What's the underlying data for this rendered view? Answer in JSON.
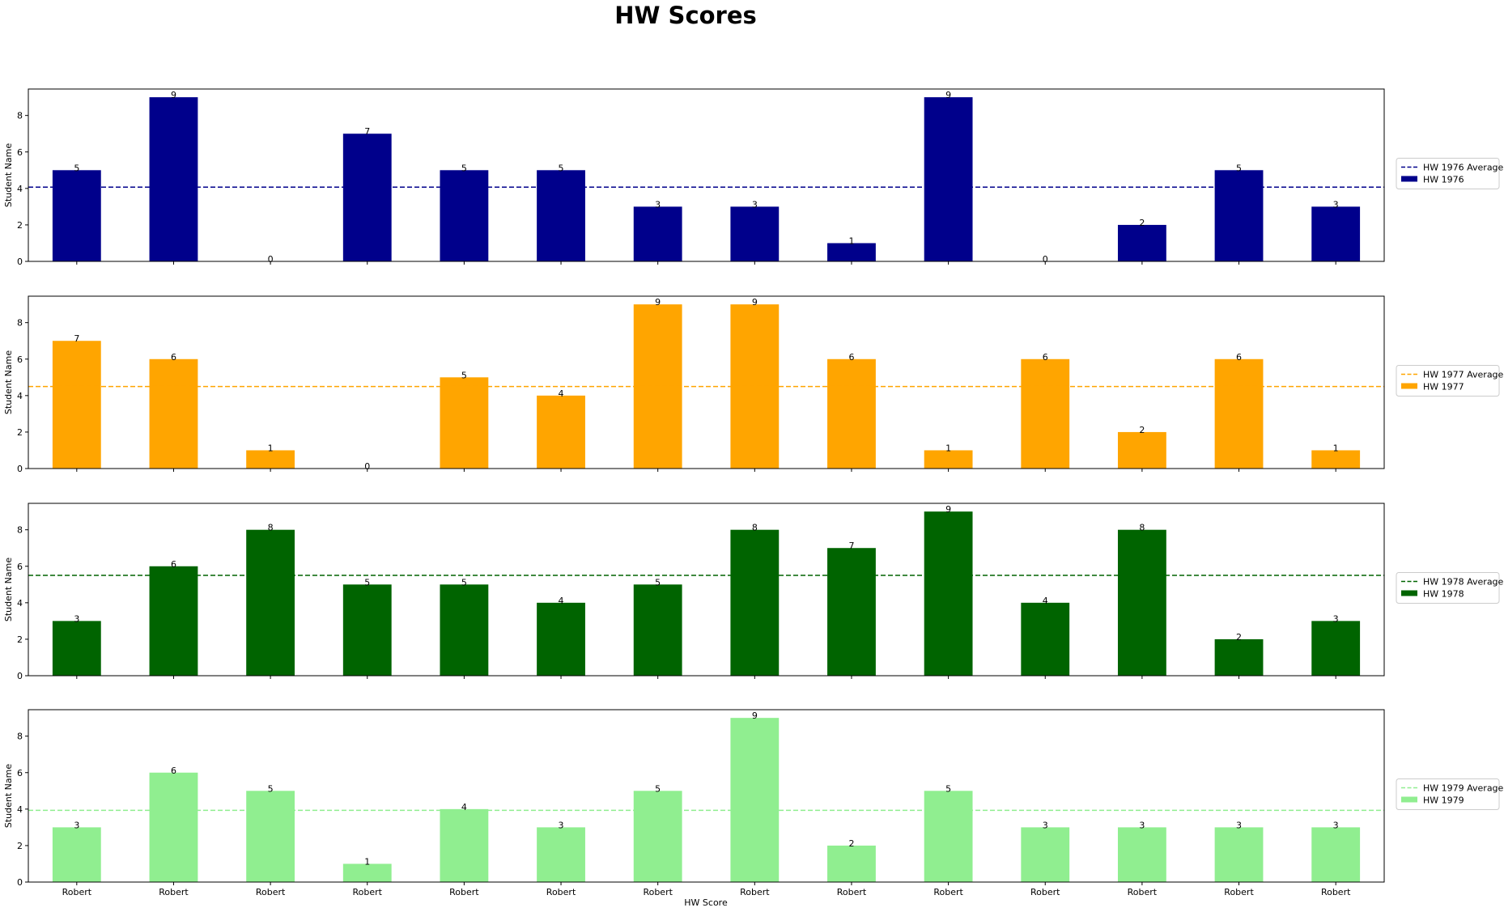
{
  "figure": {
    "title": "HW Scores",
    "xlabel": "HW Score",
    "ylabel": "Student Name"
  },
  "chart_data": [
    {
      "type": "bar",
      "categories": [
        "Robert",
        "Robert",
        "Robert",
        "Robert",
        "Robert",
        "Robert",
        "Robert",
        "Robert",
        "Robert",
        "Robert",
        "Robert",
        "Robert",
        "Robert",
        "Robert"
      ],
      "series": [
        {
          "name": "HW 1976",
          "values": [
            5,
            9,
            0,
            7,
            5,
            5,
            3,
            3,
            1,
            9,
            0,
            2,
            5,
            3
          ],
          "color": "#00008b"
        }
      ],
      "average": {
        "name": "HW 1976 Average",
        "value": 4.07
      },
      "ylabel": "Student Name",
      "ylim": [
        0,
        9.45
      ],
      "yticks": [
        0,
        2,
        4,
        6,
        8
      ],
      "legend": "center-right outside",
      "grid": false
    },
    {
      "type": "bar",
      "categories": [
        "Robert",
        "Robert",
        "Robert",
        "Robert",
        "Robert",
        "Robert",
        "Robert",
        "Robert",
        "Robert",
        "Robert",
        "Robert",
        "Robert",
        "Robert",
        "Robert"
      ],
      "series": [
        {
          "name": "HW 1977",
          "values": [
            7,
            6,
            1,
            0,
            5,
            4,
            9,
            9,
            6,
            1,
            6,
            2,
            6,
            1
          ],
          "color": "#ffa500"
        }
      ],
      "average": {
        "name": "HW 1977 Average",
        "value": 4.5
      },
      "ylabel": "Student Name",
      "ylim": [
        0,
        9.45
      ],
      "yticks": [
        0,
        2,
        4,
        6,
        8
      ],
      "legend": "center-right outside",
      "grid": false
    },
    {
      "type": "bar",
      "categories": [
        "Robert",
        "Robert",
        "Robert",
        "Robert",
        "Robert",
        "Robert",
        "Robert",
        "Robert",
        "Robert",
        "Robert",
        "Robert",
        "Robert",
        "Robert",
        "Robert"
      ],
      "series": [
        {
          "name": "HW 1978",
          "values": [
            3,
            6,
            8,
            5,
            5,
            4,
            5,
            8,
            7,
            9,
            4,
            8,
            2,
            3
          ],
          "color": "#006400"
        }
      ],
      "average": {
        "name": "HW 1978 Average",
        "value": 5.5
      },
      "ylabel": "Student Name",
      "ylim": [
        0,
        9.45
      ],
      "yticks": [
        0,
        2,
        4,
        6,
        8
      ],
      "legend": "center-right outside",
      "grid": false
    },
    {
      "type": "bar",
      "categories": [
        "Robert",
        "Robert",
        "Robert",
        "Robert",
        "Robert",
        "Robert",
        "Robert",
        "Robert",
        "Robert",
        "Robert",
        "Robert",
        "Robert",
        "Robert",
        "Robert"
      ],
      "series": [
        {
          "name": "HW 1979",
          "values": [
            3,
            6,
            5,
            1,
            4,
            3,
            5,
            9,
            2,
            5,
            3,
            3,
            3,
            3
          ],
          "color": "#90ee90"
        }
      ],
      "average": {
        "name": "HW 1979 Average",
        "value": 3.93
      },
      "xlabel": "HW Score",
      "ylabel": "Student Name",
      "ylim": [
        0,
        9.45
      ],
      "yticks": [
        0,
        2,
        4,
        6,
        8
      ],
      "legend": "center-right outside",
      "grid": false
    }
  ]
}
